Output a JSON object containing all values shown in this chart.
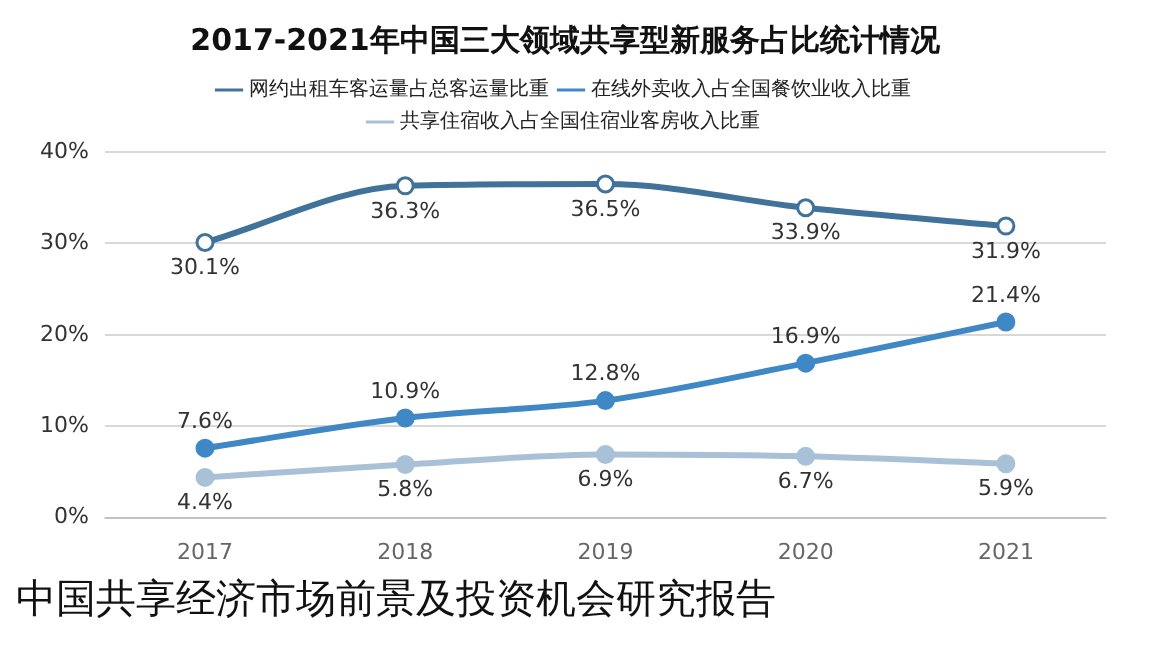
{
  "chart_data": {
    "type": "line",
    "title": "2017-2021年中国三大领域共享型新服务占比统计情况",
    "categories": [
      "2017",
      "2018",
      "2019",
      "2020",
      "2021"
    ],
    "series": [
      {
        "name": "网约出租车客运量占总客运量比重",
        "color": "#41729a",
        "values": [
          30.1,
          36.3,
          36.5,
          33.9,
          31.9
        ],
        "value_labels": [
          "30.1%",
          "36.3%",
          "36.5%",
          "33.9%",
          "31.9%"
        ]
      },
      {
        "name": "在线外卖收入占全国餐饮业收入比重",
        "color": "#3f88c5",
        "values": [
          7.6,
          10.9,
          12.8,
          16.9,
          21.4
        ],
        "value_labels": [
          "7.6%",
          "10.9%",
          "12.8%",
          "16.9%",
          "21.4%"
        ]
      },
      {
        "name": "共享住宿收入占全国住宿业客房收入比重",
        "color": "#a9c1d6",
        "values": [
          4.4,
          5.8,
          6.9,
          6.7,
          5.9
        ],
        "value_labels": [
          "4.4%",
          "5.8%",
          "6.9%",
          "6.7%",
          "5.9%"
        ]
      }
    ],
    "ylim": [
      0,
      40
    ],
    "yticks": [
      {
        "value": 0,
        "label": "0%"
      },
      {
        "value": 10,
        "label": "10%"
      },
      {
        "value": 20,
        "label": "20%"
      },
      {
        "value": 30,
        "label": "30%"
      },
      {
        "value": 40,
        "label": "40%"
      }
    ],
    "grid": "y",
    "legend": "top",
    "marker": "circle",
    "line_style": "solid",
    "annotations": [
      "中国共享经济市场前景及投资机会研究报告"
    ]
  }
}
